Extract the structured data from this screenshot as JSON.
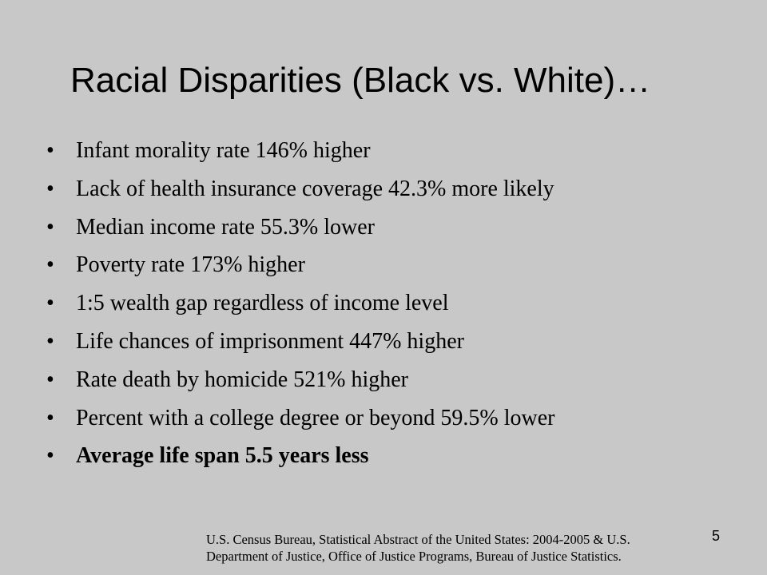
{
  "slide": {
    "title": "Racial Disparities (Black vs. White)…",
    "bullets": [
      {
        "text": "Infant morality rate 146% higher",
        "bold": false
      },
      {
        "text": "Lack of health insurance coverage 42.3% more likely",
        "bold": false
      },
      {
        "text": "Median income rate 55.3% lower",
        "bold": false
      },
      {
        "text": "Poverty rate 173% higher",
        "bold": false
      },
      {
        "text": "1:5 wealth gap regardless of income level",
        "bold": false
      },
      {
        "text": "Life chances of imprisonment 447% higher",
        "bold": false
      },
      {
        "text": "Rate death by homicide 521% higher",
        "bold": false
      },
      {
        "text": "Percent with a college degree or beyond 59.5% lower",
        "bold": false
      },
      {
        "text": "Average life span 5.5 years less",
        "bold": true
      }
    ],
    "bullet_symbol": "•",
    "source_lines": [
      "U.S. Census Bureau, Statistical Abstract of the United States: 2004-2005 & U.S.",
      "Department of Justice, Office of Justice Programs, Bureau of Justice Statistics."
    ],
    "page_number": "5",
    "background_color": "#c8c8c8"
  }
}
